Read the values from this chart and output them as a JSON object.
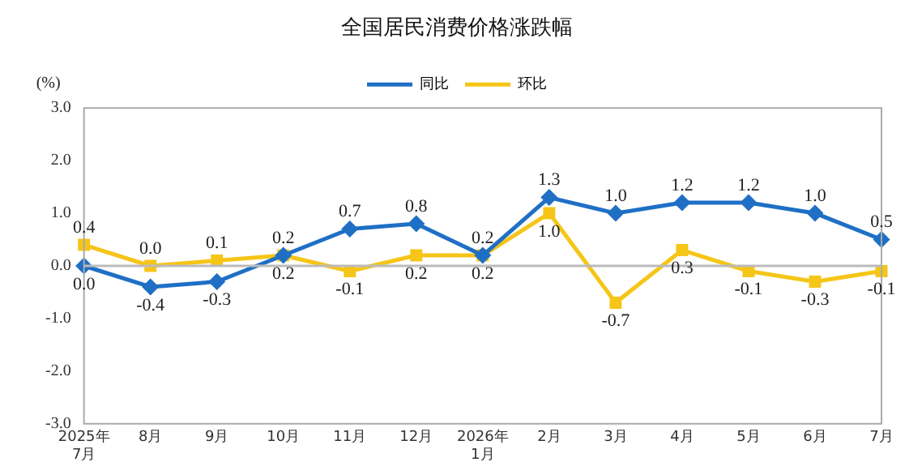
{
  "chart_data": {
    "type": "line",
    "title": "全国居民消费价格涨跌幅",
    "ylabel": "(%)",
    "categories": [
      "2025年\n7月",
      "8月",
      "9月",
      "10月",
      "11月",
      "12月",
      "2026年\n1月",
      "2月",
      "3月",
      "4月",
      "5月",
      "6月",
      "7月"
    ],
    "series": [
      {
        "name": "同比",
        "color": "#1f6fc5",
        "marker": "diamond",
        "values": [
          0.0,
          -0.4,
          -0.3,
          0.2,
          0.7,
          0.8,
          0.2,
          1.3,
          1.0,
          1.2,
          1.2,
          1.0,
          0.5
        ],
        "value_labels": [
          "0.0",
          "-0.4",
          "-0.3",
          "0.2",
          "0.7",
          "0.8",
          "0.2",
          "1.3",
          "1.0",
          "1.2",
          "1.2",
          "1.0",
          "0.5"
        ]
      },
      {
        "name": "环比",
        "color": "#f5c518",
        "marker": "square",
        "values": [
          0.4,
          0.0,
          0.1,
          0.2,
          -0.1,
          0.2,
          0.2,
          1.0,
          -0.7,
          0.3,
          -0.1,
          -0.3,
          -0.1
        ],
        "value_labels": [
          "0.4",
          "0.0",
          "0.1",
          "0.2",
          "-0.1",
          "0.2",
          "0.2",
          "1.0",
          "-0.7",
          "0.3",
          "-0.1",
          "-0.3",
          "-0.1"
        ]
      }
    ],
    "ylim": [
      -3.0,
      3.0
    ],
    "yticks": [
      {
        "value": -3,
        "label": "-3.0"
      },
      {
        "value": -2,
        "label": "-2.0"
      },
      {
        "value": -1,
        "label": "-1.0"
      },
      {
        "value": 0,
        "label": "0.0"
      },
      {
        "value": 1,
        "label": "1.0"
      },
      {
        "value": 2,
        "label": "2.0"
      },
      {
        "value": 3,
        "label": "3.0"
      }
    ],
    "ref_lines": [
      {
        "axis": "y",
        "value": 0,
        "color": "#bbbbbb"
      }
    ],
    "legend": "top",
    "line_style": "solid"
  }
}
